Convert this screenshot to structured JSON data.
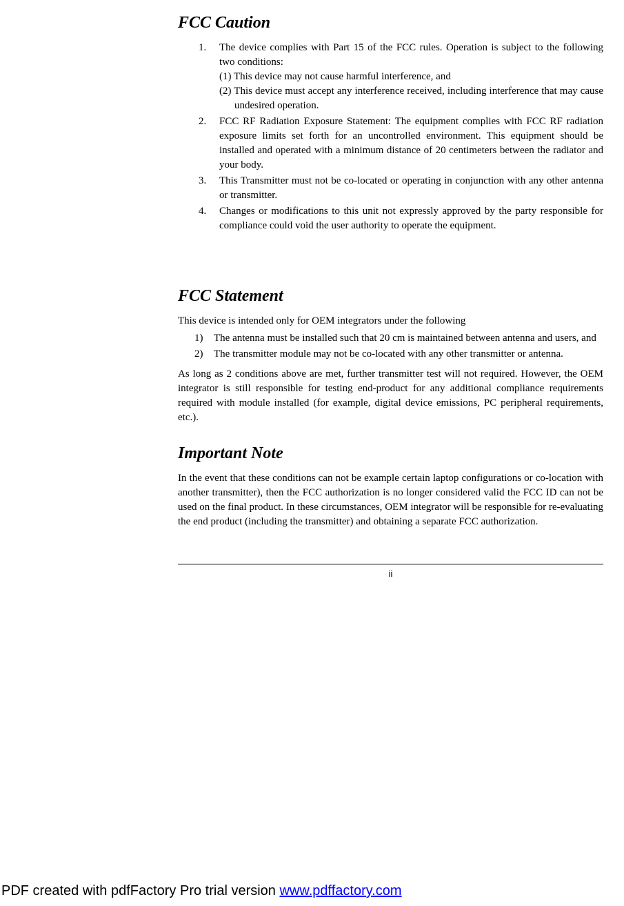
{
  "sections": {
    "caution": {
      "heading": "FCC Caution",
      "items": [
        {
          "num": "1.",
          "text": "The device complies with Part 15 of the FCC rules. Operation is subject to the following two conditions:",
          "sub1": "(1) This device may not cause harmful interference, and",
          "sub2": "(2) This device must accept any interference received, including interference that may cause undesired operation."
        },
        {
          "num": "2.",
          "text": "FCC RF Radiation Exposure Statement: The equipment complies with FCC RF radiation exposure limits set forth for an uncontrolled environment. This equipment should be installed and operated with a minimum distance of 20 centimeters between the radiator and your body."
        },
        {
          "num": "3.",
          "text": "This Transmitter must not be co-located or operating in conjunction with any other antenna or transmitter."
        },
        {
          "num": "4.",
          "text": "Changes or modifications to this unit not expressly approved by the party responsible for compliance could void the user authority to operate the equipment."
        }
      ]
    },
    "statement": {
      "heading": "FCC Statement",
      "intro": "This device is intended only for OEM integrators under the following",
      "items": [
        {
          "num": "1)",
          "text": "The antenna must be installed such that 20 cm is maintained between antenna and users, and"
        },
        {
          "num": "2)",
          "text": "The transmitter module may not be co-located with any other transmitter or antenna."
        }
      ],
      "outro": "As long as 2 conditions above are met, further transmitter test will not required.  However, the OEM integrator is still responsible for testing end-product for any additional compliance requirements required with module installed (for example, digital device emissions, PC peripheral requirements, etc.)."
    },
    "note": {
      "heading": "Important Note",
      "text": "In the event that these conditions can not be example certain laptop configurations or co-location with another transmitter), then the FCC authorization is no longer considered valid the FCC ID can not be used on the final product. In these circumstances, OEM integrator will be responsible for re-evaluating the end product (including the transmitter) and obtaining a separate FCC authorization."
    }
  },
  "page_number": "ii",
  "footer": {
    "prefix": "PDF created with pdfFactory Pro trial version ",
    "link_text": "www.pdffactory.com"
  }
}
